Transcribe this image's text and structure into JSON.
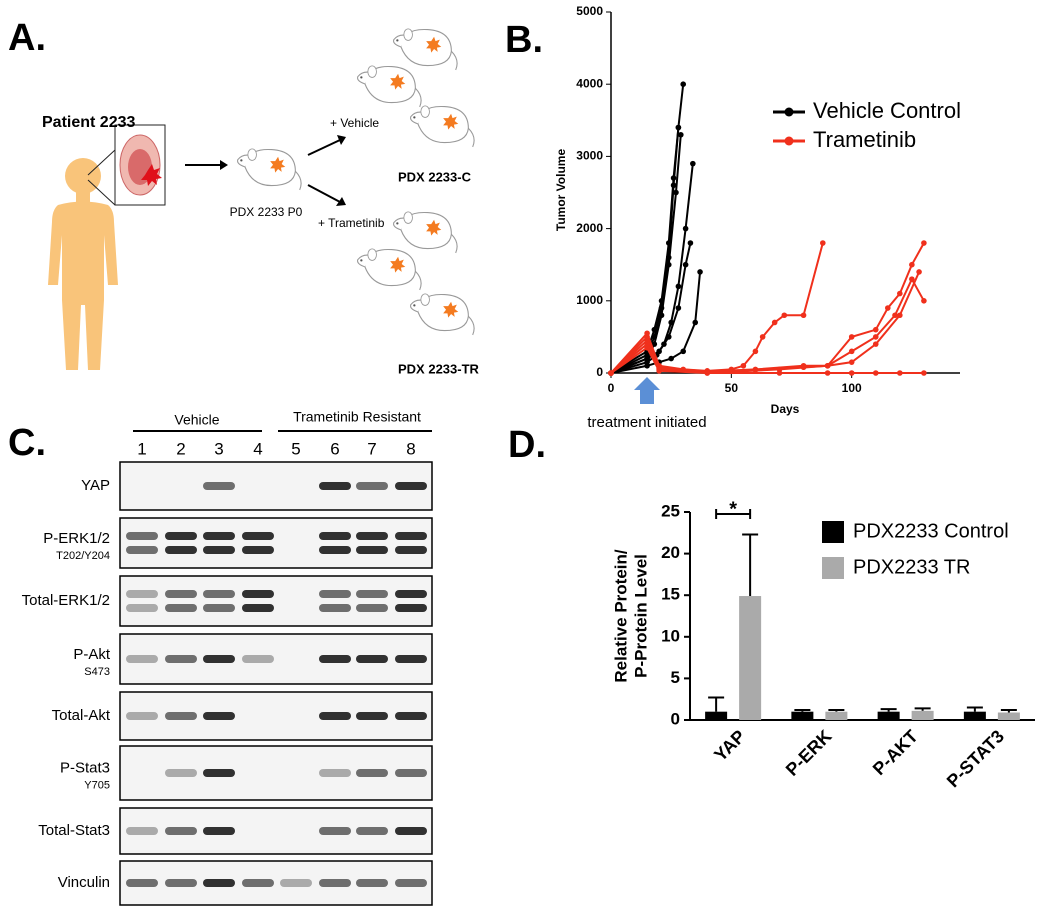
{
  "panel_labels": [
    "A.",
    "B.",
    "C.",
    "D."
  ],
  "panel_a": {
    "patient": "Patient 2233",
    "p0": "PDX 2233 P0",
    "vehicle": "+ Vehicle",
    "trametinib": "+ Trametinib",
    "group_c": "PDX 2233-C",
    "group_tr": "PDX 2233-TR"
  },
  "panel_c": {
    "groups": [
      "Vehicle",
      "Trametinib Resistant"
    ],
    "lanes": [
      1,
      2,
      3,
      4,
      5,
      6,
      7,
      8
    ],
    "rows": [
      {
        "label": "YAP"
      },
      {
        "label": "P-ERK1/2",
        "sublabel": "T202/Y204"
      },
      {
        "label": "Total-ERK1/2"
      },
      {
        "label": "P-Akt",
        "sublabel": "S473"
      },
      {
        "label": "Total-Akt"
      },
      {
        "label": "P-Stat3",
        "sublabel": "Y705"
      },
      {
        "label": "Total-Stat3"
      },
      {
        "label": "Vinculin"
      }
    ]
  },
  "chart_data": [
    {
      "type": "line",
      "x_label": "Days",
      "y_label": "Tumor Volume",
      "annotation": "treatment initiated",
      "xlim": [
        0,
        145
      ],
      "xticks": [
        0,
        50,
        100
      ],
      "ylim": [
        0,
        5000
      ],
      "yticks": [
        0,
        1000,
        2000,
        3000,
        4000,
        5000
      ],
      "series": [
        {
          "name": "Vehicle Control",
          "color": "#000000",
          "lines": [
            {
              "x": [
                0,
                15,
                18,
                21,
                24,
                26,
                28,
                30
              ],
              "values": [
                0,
                300,
                600,
                1000,
                1800,
                2700,
                3400,
                4000
              ]
            },
            {
              "x": [
                0,
                15,
                18,
                21,
                24,
                26,
                28
              ],
              "values": [
                0,
                250,
                500,
                900,
                1600,
                2600,
                3400
              ]
            },
            {
              "x": [
                0,
                15,
                18,
                21,
                24,
                27,
                29
              ],
              "values": [
                0,
                200,
                400,
                800,
                1500,
                2500,
                3300
              ]
            },
            {
              "x": [
                0,
                15,
                19,
                22,
                25,
                28,
                31,
                34
              ],
              "values": [
                0,
                150,
                250,
                400,
                700,
                1200,
                2000,
                2900
              ]
            },
            {
              "x": [
                0,
                15,
                20,
                24,
                28,
                31,
                33
              ],
              "values": [
                0,
                200,
                300,
                500,
                900,
                1500,
                1800
              ]
            },
            {
              "x": [
                0,
                15,
                20,
                25,
                30,
                35,
                37
              ],
              "values": [
                0,
                100,
                150,
                200,
                300,
                700,
                1400
              ]
            }
          ]
        },
        {
          "name": "Trametinib",
          "color": "#f0301c",
          "lines": [
            {
              "x": [
                0,
                15,
                20,
                30,
                40,
                50,
                55,
                60,
                63,
                68,
                72,
                80,
                88
              ],
              "values": [
                0,
                550,
                100,
                50,
                30,
                50,
                100,
                300,
                500,
                700,
                800,
                800,
                1800
              ]
            },
            {
              "x": [
                0,
                15,
                20,
                40,
                60,
                80,
                90,
                100,
                110,
                115,
                120,
                125,
                130
              ],
              "values": [
                0,
                500,
                80,
                20,
                50,
                100,
                100,
                500,
                600,
                900,
                1100,
                1500,
                1800
              ]
            },
            {
              "x": [
                0,
                15,
                20,
                40,
                60,
                80,
                90,
                100,
                110,
                118,
                125,
                130
              ],
              "values": [
                0,
                450,
                60,
                20,
                40,
                80,
                100,
                300,
                500,
                800,
                1300,
                1000
              ]
            },
            {
              "x": [
                0,
                15,
                20,
                40,
                70,
                90,
                100,
                110,
                120,
                128
              ],
              "values": [
                0,
                400,
                50,
                0,
                50,
                100,
                150,
                400,
                800,
                1400
              ]
            },
            {
              "x": [
                0,
                15,
                20,
                40,
                70,
                90,
                100,
                110,
                120,
                130
              ],
              "values": [
                0,
                350,
                30,
                0,
                0,
                0,
                0,
                0,
                0,
                0
              ]
            }
          ]
        }
      ]
    },
    {
      "type": "bar",
      "y_label": [
        "Relative Protein/",
        "P-Protein Level"
      ],
      "annotation": "*",
      "categories": [
        "YAP",
        "P-ERK",
        "P-AKT",
        "P-STAT3"
      ],
      "ylim": [
        0,
        25
      ],
      "yticks": [
        0,
        5,
        10,
        15,
        20,
        25
      ],
      "series": [
        {
          "name": "PDX2233 Control",
          "color": "#000000",
          "values": [
            1,
            1,
            1,
            1
          ],
          "errors": [
            1.7,
            0.2,
            0.3,
            0.5
          ]
        },
        {
          "name": "PDX2233 TR",
          "color": "#aaaaaa",
          "values": [
            14.9,
            1,
            1.1,
            0.9
          ],
          "errors": [
            7.4,
            0.2,
            0.3,
            0.3
          ]
        }
      ]
    }
  ]
}
